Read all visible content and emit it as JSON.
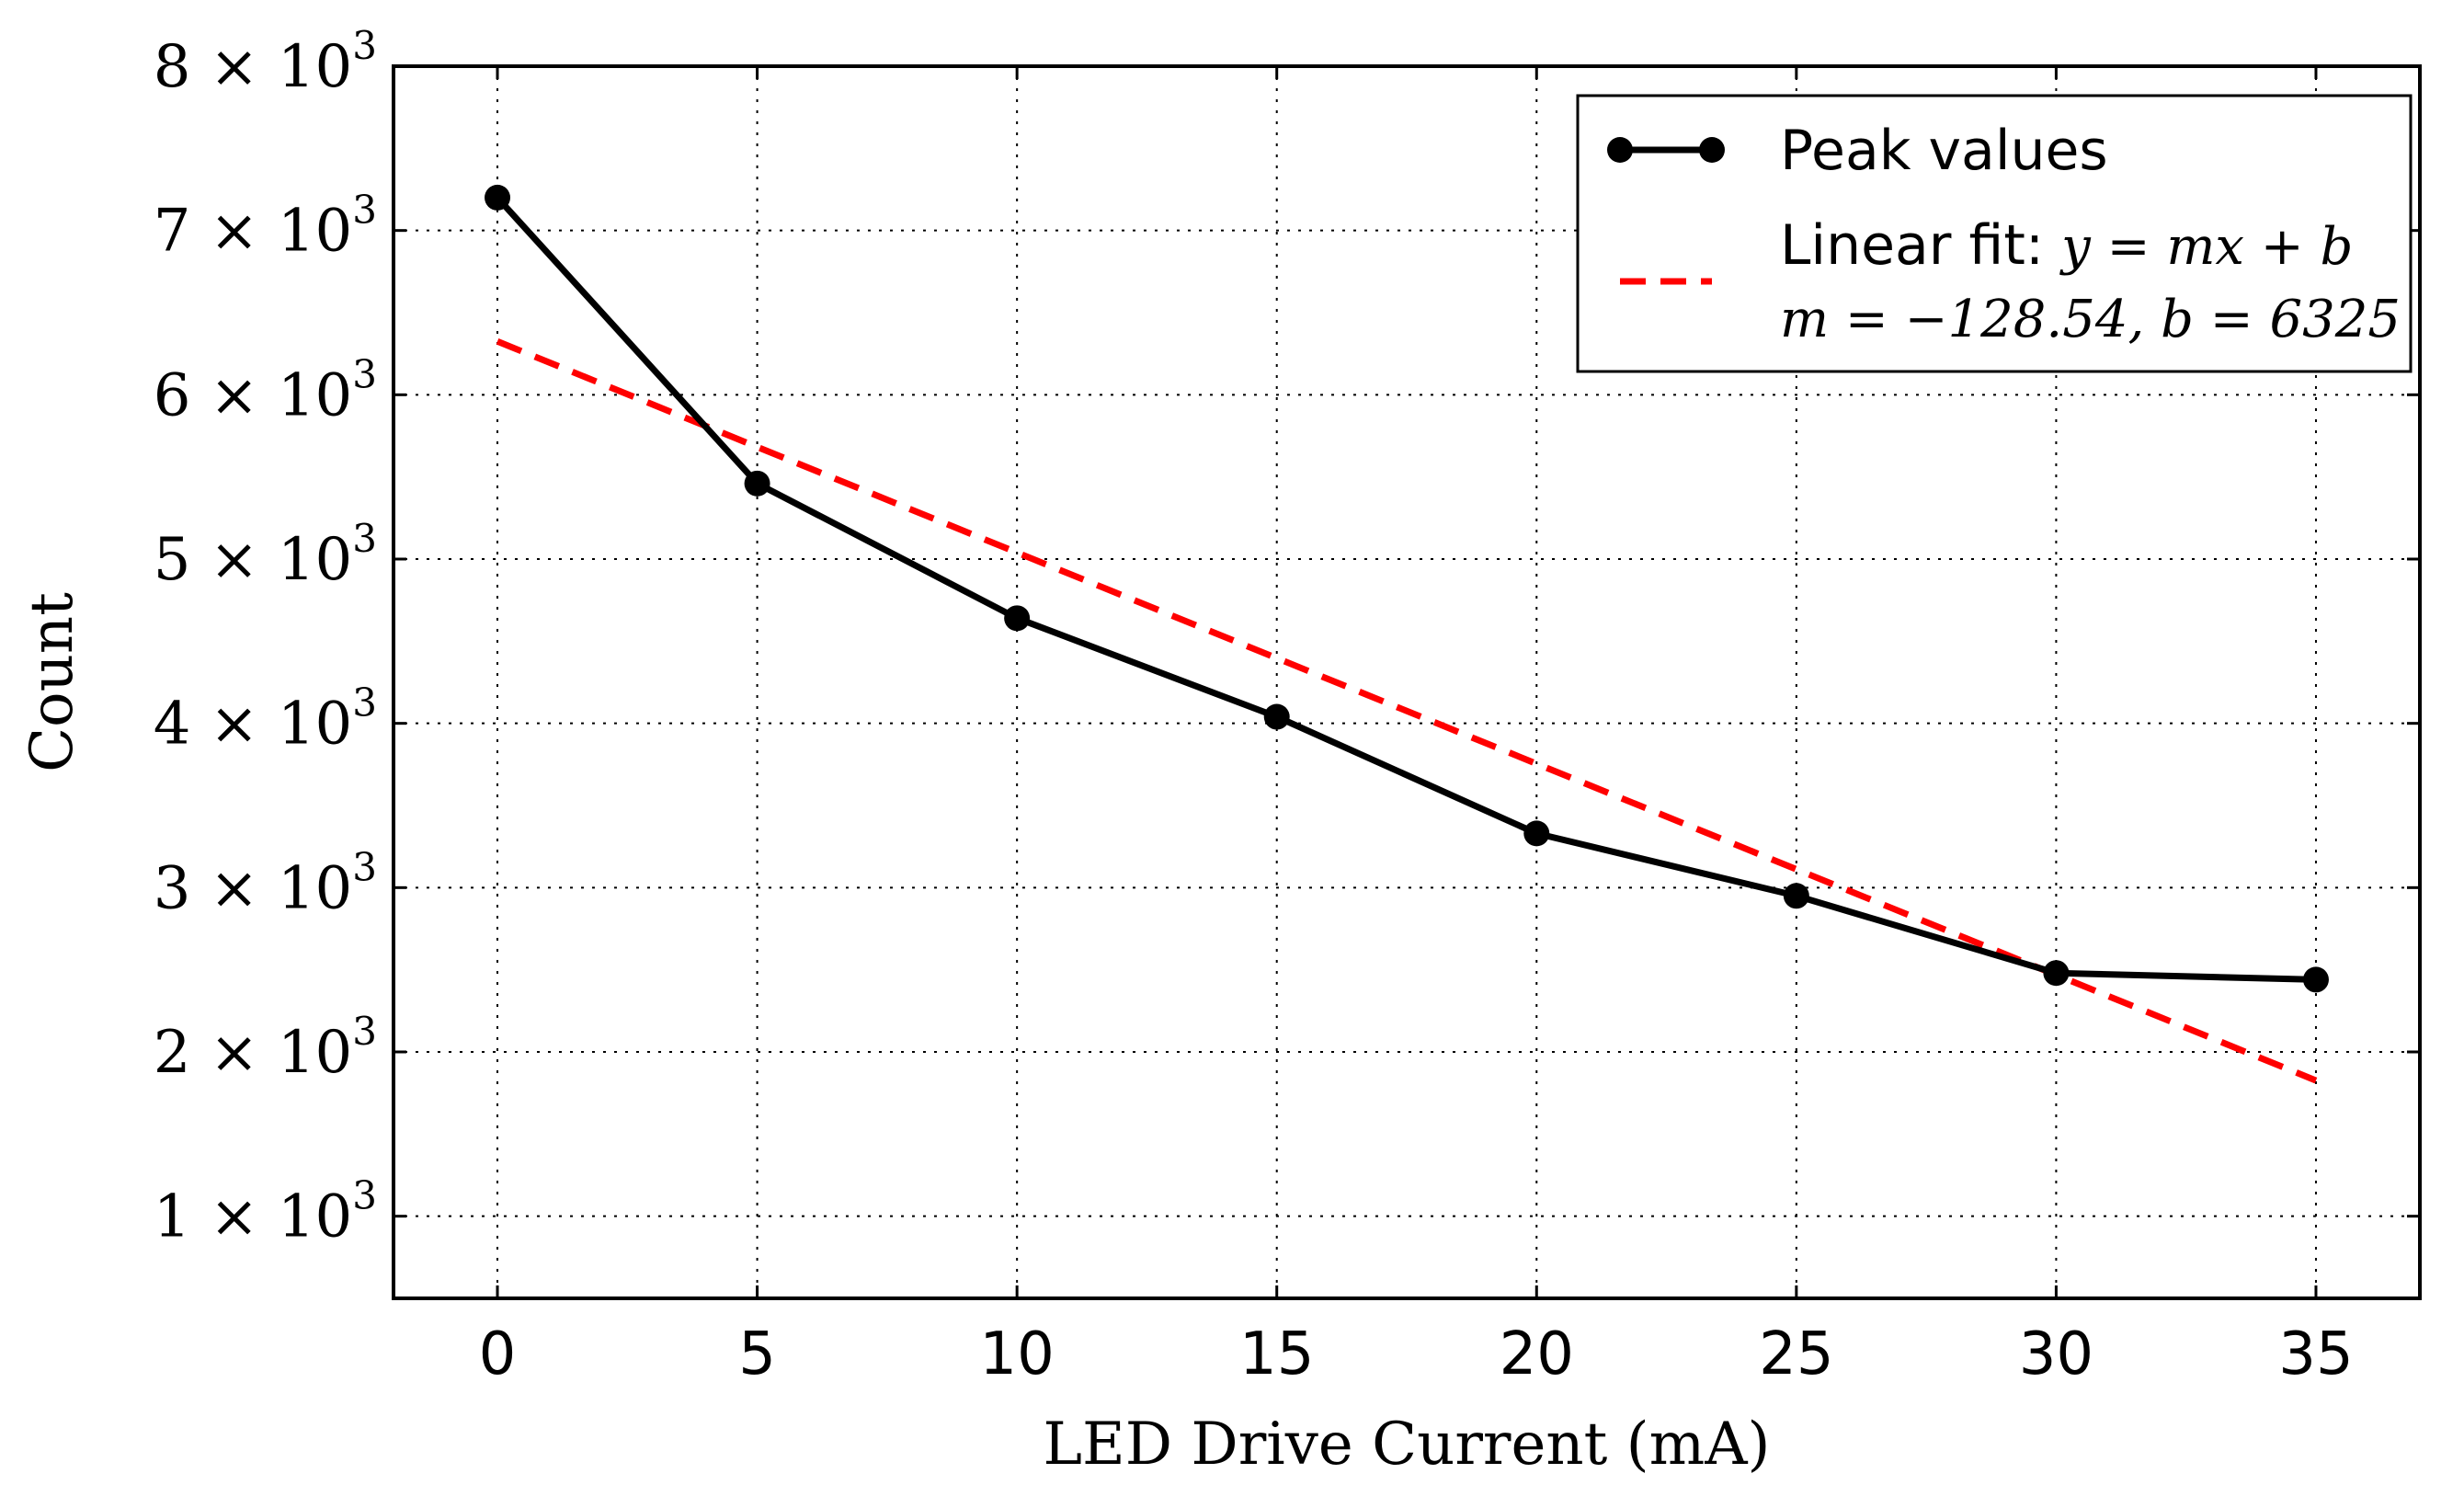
{
  "chart_data": {
    "type": "line",
    "title": "",
    "xlabel": "LED Drive Current (mA)",
    "ylabel": "Count",
    "xlim": [
      -2,
      37
    ],
    "ylim": [
      500,
      8000
    ],
    "grid": true,
    "xticks": [
      0,
      5,
      10,
      15,
      20,
      25,
      30,
      35
    ],
    "xtick_labels": [
      "0",
      "5",
      "10",
      "15",
      "20",
      "25",
      "30",
      "35"
    ],
    "yticks": [
      1000,
      2000,
      3000,
      4000,
      5000,
      6000,
      7000,
      8000
    ],
    "ytick_labels": [
      {
        "mantissa": "1",
        "times": "×",
        "base": "10",
        "exponent": "3"
      },
      {
        "mantissa": "2",
        "times": "×",
        "base": "10",
        "exponent": "3"
      },
      {
        "mantissa": "3",
        "times": "×",
        "base": "10",
        "exponent": "3"
      },
      {
        "mantissa": "4",
        "times": "×",
        "base": "10",
        "exponent": "3"
      },
      {
        "mantissa": "5",
        "times": "×",
        "base": "10",
        "exponent": "3"
      },
      {
        "mantissa": "6",
        "times": "×",
        "base": "10",
        "exponent": "3"
      },
      {
        "mantissa": "7",
        "times": "×",
        "base": "10",
        "exponent": "3"
      },
      {
        "mantissa": "8",
        "times": "×",
        "base": "10",
        "exponent": "3"
      }
    ],
    "series": [
      {
        "name": "Peak values",
        "style": "solid-markers",
        "color": "#000000",
        "x": [
          0,
          5,
          10,
          15,
          20,
          25,
          30,
          35
        ],
        "values": [
          7200,
          5460,
          4640,
          4040,
          3330,
          2950,
          2480,
          2440
        ]
      },
      {
        "name": "Linear fit",
        "style": "dashed",
        "color": "#ff0000",
        "x": [
          0,
          35
        ],
        "values": [
          6325,
          1826
        ]
      }
    ],
    "legend": {
      "placement": "top-right",
      "entries": [
        {
          "label": "Peak values"
        },
        {
          "label": "Linear fit: ",
          "math": "y = mx + b"
        },
        {
          "label": "",
          "math": "m = −128.54, b = 6325"
        }
      ]
    }
  }
}
